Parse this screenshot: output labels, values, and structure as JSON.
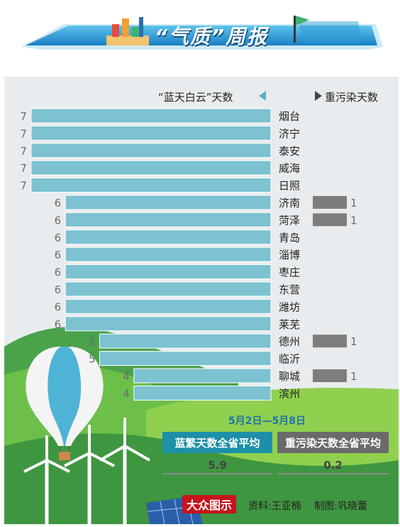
{
  "header": {
    "title": "“气质”周报"
  },
  "legend": {
    "blue": "“蓝天白云”天数",
    "grey": "重污染天数"
  },
  "chart_data": {
    "type": "bar",
    "categories": [
      "烟台",
      "济宁",
      "泰安",
      "威海",
      "日照",
      "济南",
      "菏泽",
      "青岛",
      "淄博",
      "枣庄",
      "东营",
      "潍坊",
      "莱芜",
      "德州",
      "临沂",
      "聊城",
      "滨州"
    ],
    "series": [
      {
        "name": "“蓝天白云”天数",
        "values": [
          7,
          7,
          7,
          7,
          7,
          6,
          6,
          6,
          6,
          6,
          6,
          6,
          6,
          5,
          5,
          4,
          4
        ]
      },
      {
        "name": "重污染天数",
        "values": [
          0,
          0,
          0,
          0,
          0,
          1,
          1,
          0,
          0,
          0,
          0,
          0,
          0,
          1,
          0,
          1,
          0
        ]
      }
    ],
    "colors": {
      "blue": "#7cc2d1",
      "grey": "#7d7d7d"
    }
  },
  "summary": {
    "date_range": "5月2日—5月8日",
    "blue_label": "蓝繁天数全省平均",
    "blue_value": "5.9",
    "grey_label": "重污染天数全省平均",
    "grey_value": "0.2"
  },
  "footer": {
    "logo": "大众图示",
    "source": "资料:王亚楠",
    "designer": "制图:巩晓蕾"
  }
}
